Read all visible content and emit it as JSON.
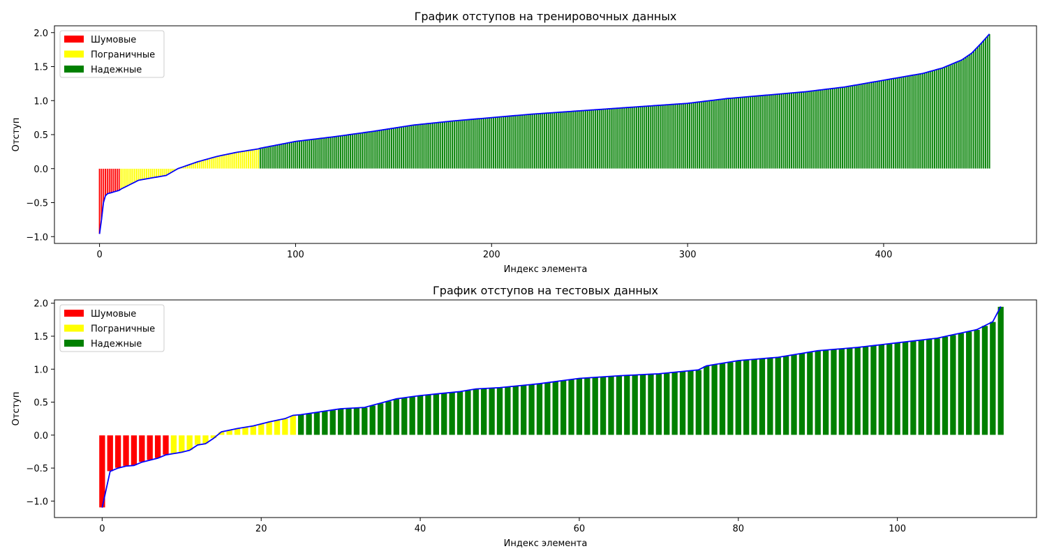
{
  "chart_data": [
    {
      "type": "bar",
      "title": "График отступов на тренировочных данных",
      "xlabel": "Индекс элемента",
      "ylabel": "Отступ",
      "n": 455,
      "xlim": [
        -23,
        478
      ],
      "ylim": [
        -1.1,
        2.1
      ],
      "xticks": [
        0,
        100,
        200,
        300,
        400
      ],
      "yticks": [
        -1.0,
        -0.5,
        0.0,
        0.5,
        1.0,
        1.5,
        2.0
      ],
      "ytick_labels": [
        "−1.0",
        "−0.5",
        "0.0",
        "0.5",
        "1.0",
        "1.5",
        "2.0"
      ],
      "legend": {
        "position": "upper left",
        "entries": [
          {
            "label": "Шумовые",
            "color": "#ff0000"
          },
          {
            "label": "Пограничные",
            "color": "#ffff00"
          },
          {
            "label": "Надежные",
            "color": "#008000"
          }
        ]
      },
      "line_color": "#0000ff",
      "categories": [
        {
          "name": "Шумовые",
          "from": 0,
          "to": 10,
          "color": "#ff0000"
        },
        {
          "name": "Пограничные",
          "from": 11,
          "to": 81,
          "color": "#ffff00"
        },
        {
          "name": "Надежные",
          "from": 82,
          "to": 454,
          "color": "#008000"
        }
      ],
      "margin_curve": [
        [
          0,
          -0.96
        ],
        [
          1,
          -0.75
        ],
        [
          2,
          -0.5
        ],
        [
          3,
          -0.4
        ],
        [
          4,
          -0.37
        ],
        [
          10,
          -0.32
        ],
        [
          11,
          -0.3
        ],
        [
          20,
          -0.17
        ],
        [
          34,
          -0.1
        ],
        [
          40,
          0.0
        ],
        [
          50,
          0.1
        ],
        [
          60,
          0.18
        ],
        [
          70,
          0.24
        ],
        [
          81,
          0.29
        ],
        [
          82,
          0.3
        ],
        [
          100,
          0.4
        ],
        [
          120,
          0.47
        ],
        [
          140,
          0.55
        ],
        [
          160,
          0.64
        ],
        [
          180,
          0.7
        ],
        [
          200,
          0.75
        ],
        [
          220,
          0.8
        ],
        [
          240,
          0.84
        ],
        [
          260,
          0.88
        ],
        [
          280,
          0.92
        ],
        [
          300,
          0.96
        ],
        [
          320,
          1.03
        ],
        [
          340,
          1.08
        ],
        [
          360,
          1.13
        ],
        [
          380,
          1.2
        ],
        [
          400,
          1.3
        ],
        [
          420,
          1.4
        ],
        [
          430,
          1.48
        ],
        [
          440,
          1.6
        ],
        [
          445,
          1.7
        ],
        [
          450,
          1.85
        ],
        [
          454,
          1.98
        ]
      ]
    },
    {
      "type": "bar",
      "title": "График отступов на тестовых данных",
      "xlabel": "Индекс элемента",
      "ylabel": "Отступ",
      "n": 114,
      "xlim": [
        -6,
        117.5
      ],
      "ylim": [
        -1.25,
        2.05
      ],
      "xticks": [
        0,
        20,
        40,
        60,
        80,
        100
      ],
      "yticks": [
        -1.0,
        -0.5,
        0.0,
        0.5,
        1.0,
        1.5,
        2.0
      ],
      "ytick_labels": [
        "−1.0",
        "−0.5",
        "0.0",
        "0.5",
        "1.0",
        "1.5",
        "2.0"
      ],
      "legend": {
        "position": "upper left",
        "entries": [
          {
            "label": "Шумовые",
            "color": "#ff0000"
          },
          {
            "label": "Пограничные",
            "color": "#ffff00"
          },
          {
            "label": "Надежные",
            "color": "#008000"
          }
        ]
      },
      "line_color": "#0000ff",
      "categories": [
        {
          "name": "Шумовые",
          "from": 0,
          "to": 8,
          "color": "#ff0000"
        },
        {
          "name": "Пограничные",
          "from": 9,
          "to": 24,
          "color": "#ffff00"
        },
        {
          "name": "Надежные",
          "from": 25,
          "to": 113,
          "color": "#008000"
        }
      ],
      "margin_curve": [
        [
          0,
          -1.1
        ],
        [
          1,
          -0.55
        ],
        [
          2,
          -0.5
        ],
        [
          3,
          -0.47
        ],
        [
          4,
          -0.46
        ],
        [
          5,
          -0.41
        ],
        [
          6,
          -0.38
        ],
        [
          7,
          -0.35
        ],
        [
          8,
          -0.3
        ],
        [
          9,
          -0.28
        ],
        [
          10,
          -0.26
        ],
        [
          11,
          -0.23
        ],
        [
          12,
          -0.15
        ],
        [
          13,
          -0.13
        ],
        [
          14,
          -0.05
        ],
        [
          15,
          0.05
        ],
        [
          17,
          0.1
        ],
        [
          19,
          0.14
        ],
        [
          21,
          0.2
        ],
        [
          23,
          0.25
        ],
        [
          24,
          0.3
        ],
        [
          25,
          0.31
        ],
        [
          30,
          0.4
        ],
        [
          33,
          0.42
        ],
        [
          37,
          0.55
        ],
        [
          40,
          0.6
        ],
        [
          45,
          0.66
        ],
        [
          47,
          0.7
        ],
        [
          50,
          0.72
        ],
        [
          55,
          0.78
        ],
        [
          60,
          0.86
        ],
        [
          65,
          0.9
        ],
        [
          70,
          0.93
        ],
        [
          75,
          0.99
        ],
        [
          76,
          1.05
        ],
        [
          80,
          1.13
        ],
        [
          85,
          1.18
        ],
        [
          90,
          1.28
        ],
        [
          95,
          1.33
        ],
        [
          100,
          1.4
        ],
        [
          105,
          1.47
        ],
        [
          110,
          1.6
        ],
        [
          112,
          1.72
        ],
        [
          113,
          1.95
        ]
      ]
    }
  ]
}
